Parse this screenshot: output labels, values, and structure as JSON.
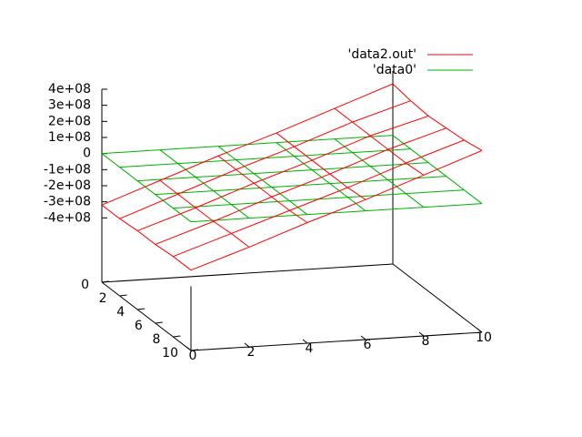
{
  "chart_data": {
    "type": "surface",
    "x": [
      0,
      2,
      4,
      6,
      8,
      10
    ],
    "y": [
      0,
      2,
      4,
      6,
      8,
      10
    ],
    "xlim": [
      0,
      10
    ],
    "ylim": [
      0,
      10
    ],
    "zlim": [
      -400000000,
      400000000
    ],
    "ticslevel": 0.5,
    "xticks": [
      0,
      2,
      4,
      6,
      8,
      10
    ],
    "yticks": [
      0,
      2,
      4,
      6,
      8,
      10
    ],
    "zticks": [
      {
        "value": -400000000,
        "label": "-4e+08"
      },
      {
        "value": -300000000,
        "label": "-3e+08"
      },
      {
        "value": -200000000,
        "label": "-2e+08"
      },
      {
        "value": -100000000,
        "label": "-1e+08"
      },
      0,
      {
        "value": 100000000,
        "label": "1e+08"
      },
      {
        "value": 200000000,
        "label": "2e+08"
      },
      {
        "value": 300000000,
        "label": "3e+08"
      },
      {
        "value": 400000000,
        "label": "4e+08"
      }
    ],
    "legend": "top right",
    "series": [
      {
        "name": "'data2.out'",
        "color": "#ff0000",
        "values": [
          [
            -320000000,
            -190000000,
            -60000000,
            60000000,
            190000000,
            320000000
          ],
          [
            -320000000,
            -190000000,
            -60000000,
            60000000,
            190000000,
            300000000
          ],
          [
            -310000000,
            -190000000,
            -60000000,
            60000000,
            190000000,
            290000000
          ],
          [
            -310000000,
            -190000000,
            -60000000,
            60000000,
            190000000,
            300000000
          ],
          [
            -300000000,
            -180000000,
            -60000000,
            60000000,
            190000000,
            310000000
          ],
          [
            -300000000,
            -180000000,
            -50000000,
            70000000,
            200000000,
            330000000
          ]
        ]
      },
      {
        "name": "'data0'",
        "color": "#00b000",
        "values": [
          [
            0,
            0,
            0,
            0,
            0,
            0
          ],
          [
            0,
            0,
            0,
            0,
            0,
            0
          ],
          [
            0,
            0,
            0,
            0,
            0,
            0
          ],
          [
            0,
            0,
            0,
            0,
            0,
            0
          ],
          [
            0,
            0,
            0,
            0,
            0,
            0
          ],
          [
            0,
            0,
            0,
            0,
            0,
            0
          ]
        ]
      }
    ]
  }
}
